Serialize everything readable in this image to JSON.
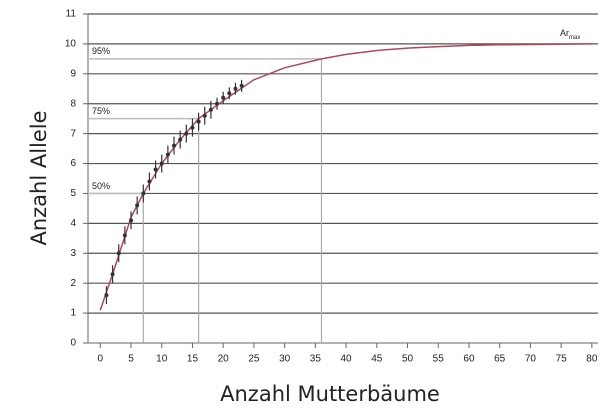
{
  "chart_data": {
    "type": "scatter",
    "x_label": "Anzahl Mutterbäume",
    "y_label": "Anzahl Allele",
    "xlim": [
      -2,
      81
    ],
    "ylim": [
      0,
      11
    ],
    "xticks": [
      0,
      5,
      10,
      15,
      20,
      25,
      30,
      35,
      40,
      45,
      50,
      55,
      60,
      65,
      70,
      75,
      80
    ],
    "yticks": [
      0,
      1,
      2,
      3,
      4,
      5,
      6,
      7,
      8,
      9,
      10,
      11
    ],
    "grid": true,
    "points": {
      "x": [
        1,
        2,
        3,
        4,
        5,
        6,
        7,
        8,
        9,
        10,
        11,
        12,
        13,
        14,
        15,
        16,
        17,
        18,
        19,
        20,
        21,
        22,
        23
      ],
      "values": [
        1.6,
        2.3,
        3.0,
        3.6,
        4.1,
        4.6,
        5.0,
        5.4,
        5.8,
        6.0,
        6.3,
        6.6,
        6.8,
        7.0,
        7.2,
        7.4,
        7.6,
        7.8,
        8.0,
        8.2,
        8.35,
        8.5,
        8.6
      ],
      "errors": [
        0.3,
        0.3,
        0.3,
        0.3,
        0.3,
        0.3,
        0.3,
        0.3,
        0.3,
        0.3,
        0.3,
        0.3,
        0.3,
        0.3,
        0.3,
        0.3,
        0.3,
        0.3,
        0.2,
        0.2,
        0.2,
        0.2,
        0.2
      ],
      "color": "#333333"
    },
    "curve": {
      "x": [
        0,
        2,
        5,
        7,
        10,
        13,
        16,
        20,
        25,
        30,
        36,
        40,
        45,
        50,
        55,
        60,
        65,
        70,
        75,
        80
      ],
      "values": [
        1.1,
        2.3,
        4.2,
        5.0,
        6.0,
        6.8,
        7.5,
        8.1,
        8.8,
        9.2,
        9.5,
        9.65,
        9.78,
        9.86,
        9.91,
        9.95,
        9.97,
        9.98,
        9.99,
        10.0
      ],
      "color": "#b0485c"
    },
    "reference_levels": [
      {
        "label": "50%",
        "y": 5,
        "x": 7
      },
      {
        "label": "75%",
        "y": 7.5,
        "x": 16
      },
      {
        "label": "95%",
        "y": 9.5,
        "x": 36
      }
    ],
    "annotation": {
      "text": "Ar",
      "subscript": "max"
    }
  }
}
